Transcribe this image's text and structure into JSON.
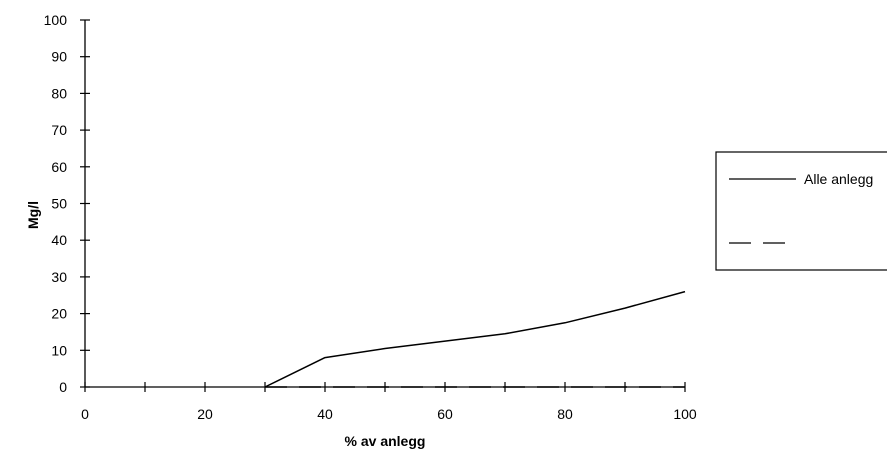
{
  "chart_data": {
    "type": "line",
    "title": "",
    "xlabel": "% av anlegg",
    "ylabel": "Mg/l",
    "xlim": [
      0,
      100
    ],
    "ylim": [
      0,
      100
    ],
    "x_ticks": [
      0,
      20,
      40,
      60,
      80,
      100
    ],
    "x_minor_ticks": [
      10,
      30,
      50,
      70,
      90
    ],
    "y_ticks": [
      0,
      10,
      20,
      30,
      40,
      50,
      60,
      70,
      80,
      90,
      100
    ],
    "grid": false,
    "legend_position": "right",
    "series": [
      {
        "name": "Alle anlegg",
        "style": "solid",
        "color": "#000000",
        "x": [
          0,
          10,
          20,
          30,
          40,
          50,
          60,
          70,
          80,
          90,
          100
        ],
        "y": [
          0,
          0,
          0,
          0,
          8,
          10.5,
          12.5,
          14.5,
          17.5,
          21.5,
          26
        ]
      },
      {
        "name": "",
        "style": "dashed",
        "color": "#000000",
        "x": [
          0,
          10,
          20,
          30,
          40,
          50,
          60,
          70,
          80,
          90,
          100
        ],
        "y": [
          0,
          0,
          0,
          0,
          0,
          0,
          0,
          0,
          0,
          0,
          0
        ]
      }
    ]
  }
}
